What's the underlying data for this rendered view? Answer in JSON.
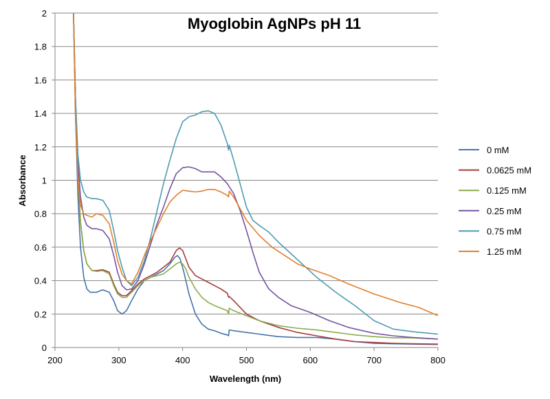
{
  "chart_data": {
    "type": "line",
    "title": "Myoglobin AgNPs pH 11",
    "xlabel": "Wavelength (nm)",
    "ylabel": "Absorbance",
    "xlim": [
      200,
      800
    ],
    "ylim": [
      0,
      2
    ],
    "xticks": [
      200,
      300,
      400,
      500,
      600,
      700,
      800
    ],
    "yticks": [
      0,
      0.2,
      0.4,
      0.6,
      0.8,
      1,
      1.2,
      1.4,
      1.6,
      1.8,
      2
    ],
    "grid": "horizontal",
    "legend_position": "right",
    "series": [
      {
        "name": "0 mM",
        "color": "#4472A8",
        "points": [
          [
            229,
            2.0
          ],
          [
            232,
            1.4
          ],
          [
            236,
            0.9
          ],
          [
            240,
            0.6
          ],
          [
            245,
            0.42
          ],
          [
            250,
            0.35
          ],
          [
            255,
            0.33
          ],
          [
            265,
            0.33
          ],
          [
            275,
            0.345
          ],
          [
            285,
            0.33
          ],
          [
            292,
            0.28
          ],
          [
            298,
            0.22
          ],
          [
            305,
            0.2
          ],
          [
            312,
            0.22
          ],
          [
            320,
            0.28
          ],
          [
            330,
            0.35
          ],
          [
            340,
            0.4
          ],
          [
            350,
            0.42
          ],
          [
            360,
            0.44
          ],
          [
            370,
            0.46
          ],
          [
            380,
            0.5
          ],
          [
            388,
            0.54
          ],
          [
            392,
            0.55
          ],
          [
            396,
            0.53
          ],
          [
            402,
            0.45
          ],
          [
            410,
            0.32
          ],
          [
            420,
            0.2
          ],
          [
            430,
            0.14
          ],
          [
            440,
            0.11
          ],
          [
            450,
            0.1
          ],
          [
            460,
            0.085
          ],
          [
            470,
            0.075
          ],
          [
            472,
            0.07
          ],
          [
            473,
            0.105
          ],
          [
            480,
            0.1
          ],
          [
            500,
            0.09
          ],
          [
            520,
            0.08
          ],
          [
            550,
            0.065
          ],
          [
            580,
            0.06
          ],
          [
            610,
            0.06
          ],
          [
            640,
            0.05
          ],
          [
            670,
            0.035
          ],
          [
            700,
            0.025
          ],
          [
            730,
            0.022
          ],
          [
            760,
            0.02
          ],
          [
            800,
            0.018
          ]
        ]
      },
      {
        "name": "0.0625 mM",
        "color": "#A3393B",
        "points": [
          [
            229,
            2.0
          ],
          [
            232,
            1.5
          ],
          [
            236,
            1.0
          ],
          [
            240,
            0.75
          ],
          [
            245,
            0.58
          ],
          [
            250,
            0.5
          ],
          [
            258,
            0.46
          ],
          [
            265,
            0.46
          ],
          [
            275,
            0.465
          ],
          [
            285,
            0.45
          ],
          [
            292,
            0.38
          ],
          [
            298,
            0.33
          ],
          [
            305,
            0.31
          ],
          [
            312,
            0.31
          ],
          [
            320,
            0.34
          ],
          [
            330,
            0.38
          ],
          [
            340,
            0.41
          ],
          [
            350,
            0.43
          ],
          [
            360,
            0.45
          ],
          [
            370,
            0.48
          ],
          [
            380,
            0.51
          ],
          [
            390,
            0.58
          ],
          [
            395,
            0.595
          ],
          [
            400,
            0.58
          ],
          [
            405,
            0.53
          ],
          [
            410,
            0.48
          ],
          [
            420,
            0.43
          ],
          [
            430,
            0.41
          ],
          [
            440,
            0.39
          ],
          [
            450,
            0.37
          ],
          [
            460,
            0.35
          ],
          [
            470,
            0.325
          ],
          [
            472,
            0.3
          ],
          [
            473,
            0.305
          ],
          [
            480,
            0.28
          ],
          [
            490,
            0.24
          ],
          [
            500,
            0.2
          ],
          [
            520,
            0.16
          ],
          [
            550,
            0.12
          ],
          [
            580,
            0.09
          ],
          [
            610,
            0.07
          ],
          [
            640,
            0.05
          ],
          [
            670,
            0.035
          ],
          [
            700,
            0.03
          ],
          [
            730,
            0.025
          ],
          [
            760,
            0.022
          ],
          [
            800,
            0.02
          ]
        ]
      },
      {
        "name": "0.125 mM",
        "color": "#8AAA4A",
        "points": [
          [
            229,
            2.0
          ],
          [
            232,
            1.5
          ],
          [
            236,
            1.0
          ],
          [
            240,
            0.75
          ],
          [
            245,
            0.58
          ],
          [
            250,
            0.5
          ],
          [
            258,
            0.46
          ],
          [
            265,
            0.455
          ],
          [
            275,
            0.46
          ],
          [
            285,
            0.44
          ],
          [
            292,
            0.37
          ],
          [
            298,
            0.32
          ],
          [
            305,
            0.3
          ],
          [
            312,
            0.3
          ],
          [
            320,
            0.33
          ],
          [
            330,
            0.37
          ],
          [
            340,
            0.4
          ],
          [
            350,
            0.42
          ],
          [
            360,
            0.43
          ],
          [
            370,
            0.44
          ],
          [
            380,
            0.47
          ],
          [
            390,
            0.5
          ],
          [
            395,
            0.51
          ],
          [
            400,
            0.5
          ],
          [
            405,
            0.47
          ],
          [
            410,
            0.42
          ],
          [
            420,
            0.35
          ],
          [
            430,
            0.3
          ],
          [
            440,
            0.27
          ],
          [
            450,
            0.25
          ],
          [
            460,
            0.235
          ],
          [
            470,
            0.22
          ],
          [
            472,
            0.2
          ],
          [
            473,
            0.235
          ],
          [
            480,
            0.22
          ],
          [
            500,
            0.19
          ],
          [
            520,
            0.16
          ],
          [
            550,
            0.13
          ],
          [
            580,
            0.115
          ],
          [
            610,
            0.105
          ],
          [
            640,
            0.09
          ],
          [
            670,
            0.075
          ],
          [
            700,
            0.065
          ],
          [
            730,
            0.058
          ],
          [
            760,
            0.058
          ],
          [
            800,
            0.05
          ]
        ]
      },
      {
        "name": "0.25 mM",
        "color": "#7352A0",
        "points": [
          [
            229,
            2.0
          ],
          [
            232,
            1.5
          ],
          [
            236,
            1.1
          ],
          [
            240,
            0.9
          ],
          [
            245,
            0.78
          ],
          [
            250,
            0.73
          ],
          [
            258,
            0.71
          ],
          [
            265,
            0.71
          ],
          [
            275,
            0.7
          ],
          [
            285,
            0.65
          ],
          [
            292,
            0.55
          ],
          [
            298,
            0.45
          ],
          [
            305,
            0.37
          ],
          [
            312,
            0.345
          ],
          [
            320,
            0.35
          ],
          [
            330,
            0.4
          ],
          [
            340,
            0.5
          ],
          [
            350,
            0.62
          ],
          [
            360,
            0.74
          ],
          [
            370,
            0.84
          ],
          [
            380,
            0.95
          ],
          [
            390,
            1.04
          ],
          [
            400,
            1.075
          ],
          [
            410,
            1.08
          ],
          [
            420,
            1.07
          ],
          [
            430,
            1.05
          ],
          [
            440,
            1.05
          ],
          [
            450,
            1.05
          ],
          [
            460,
            1.02
          ],
          [
            470,
            0.98
          ],
          [
            480,
            0.92
          ],
          [
            490,
            0.82
          ],
          [
            500,
            0.7
          ],
          [
            510,
            0.57
          ],
          [
            520,
            0.45
          ],
          [
            535,
            0.35
          ],
          [
            550,
            0.3
          ],
          [
            570,
            0.25
          ],
          [
            600,
            0.21
          ],
          [
            630,
            0.16
          ],
          [
            660,
            0.12
          ],
          [
            700,
            0.085
          ],
          [
            730,
            0.07
          ],
          [
            760,
            0.06
          ],
          [
            800,
            0.05
          ]
        ]
      },
      {
        "name": "0.75 mM",
        "color": "#4A9BB0",
        "points": [
          [
            229,
            2.0
          ],
          [
            232,
            1.5
          ],
          [
            236,
            1.15
          ],
          [
            240,
            1.0
          ],
          [
            245,
            0.93
          ],
          [
            250,
            0.9
          ],
          [
            258,
            0.89
          ],
          [
            265,
            0.89
          ],
          [
            275,
            0.88
          ],
          [
            285,
            0.82
          ],
          [
            292,
            0.7
          ],
          [
            298,
            0.58
          ],
          [
            305,
            0.48
          ],
          [
            312,
            0.4
          ],
          [
            320,
            0.37
          ],
          [
            330,
            0.42
          ],
          [
            340,
            0.52
          ],
          [
            350,
            0.66
          ],
          [
            360,
            0.82
          ],
          [
            370,
            0.98
          ],
          [
            380,
            1.12
          ],
          [
            390,
            1.25
          ],
          [
            400,
            1.35
          ],
          [
            410,
            1.38
          ],
          [
            420,
            1.39
          ],
          [
            430,
            1.41
          ],
          [
            440,
            1.415
          ],
          [
            450,
            1.4
          ],
          [
            460,
            1.33
          ],
          [
            470,
            1.22
          ],
          [
            472,
            1.18
          ],
          [
            473,
            1.21
          ],
          [
            480,
            1.12
          ],
          [
            490,
            0.98
          ],
          [
            500,
            0.84
          ],
          [
            510,
            0.76
          ],
          [
            520,
            0.73
          ],
          [
            535,
            0.69
          ],
          [
            550,
            0.63
          ],
          [
            570,
            0.56
          ],
          [
            590,
            0.49
          ],
          [
            610,
            0.42
          ],
          [
            640,
            0.33
          ],
          [
            670,
            0.25
          ],
          [
            700,
            0.16
          ],
          [
            730,
            0.11
          ],
          [
            760,
            0.095
          ],
          [
            800,
            0.08
          ]
        ]
      },
      {
        "name": "1.25 mM",
        "color": "#E07F2C",
        "points": [
          [
            229,
            2.0
          ],
          [
            232,
            1.4
          ],
          [
            236,
            1.0
          ],
          [
            240,
            0.85
          ],
          [
            245,
            0.8
          ],
          [
            250,
            0.79
          ],
          [
            258,
            0.78
          ],
          [
            265,
            0.8
          ],
          [
            275,
            0.79
          ],
          [
            285,
            0.74
          ],
          [
            292,
            0.63
          ],
          [
            298,
            0.52
          ],
          [
            305,
            0.44
          ],
          [
            312,
            0.4
          ],
          [
            320,
            0.38
          ],
          [
            330,
            0.45
          ],
          [
            340,
            0.55
          ],
          [
            350,
            0.64
          ],
          [
            360,
            0.72
          ],
          [
            370,
            0.8
          ],
          [
            380,
            0.87
          ],
          [
            390,
            0.91
          ],
          [
            400,
            0.94
          ],
          [
            410,
            0.935
          ],
          [
            420,
            0.93
          ],
          [
            430,
            0.935
          ],
          [
            440,
            0.945
          ],
          [
            450,
            0.945
          ],
          [
            460,
            0.93
          ],
          [
            470,
            0.91
          ],
          [
            472,
            0.9
          ],
          [
            473,
            0.935
          ],
          [
            480,
            0.9
          ],
          [
            490,
            0.83
          ],
          [
            500,
            0.76
          ],
          [
            520,
            0.67
          ],
          [
            540,
            0.6
          ],
          [
            560,
            0.55
          ],
          [
            580,
            0.5
          ],
          [
            600,
            0.47
          ],
          [
            630,
            0.43
          ],
          [
            660,
            0.38
          ],
          [
            700,
            0.32
          ],
          [
            740,
            0.27
          ],
          [
            770,
            0.24
          ],
          [
            800,
            0.19
          ]
        ]
      }
    ]
  }
}
